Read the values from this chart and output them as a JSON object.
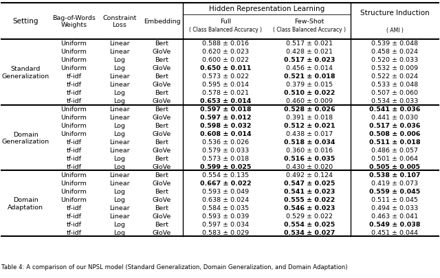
{
  "sections": [
    {
      "label": "Standard\nGeneralization",
      "rows": [
        [
          "Uniform",
          "Linear",
          "Bert",
          "0.588 ± 0.016",
          "0.517 ± 0.021",
          "0.539 ± 0.048"
        ],
        [
          "Uniform",
          "Linear",
          "GloVe",
          "0.620 ± 0.023",
          "0.428 ± 0.021",
          "0.458 ± 0.024"
        ],
        [
          "Uniform",
          "Log",
          "Bert",
          "0.600 ± 0.022",
          "0.517 ± 0.023",
          "0.520 ± 0.033"
        ],
        [
          "Uniform",
          "Log",
          "GloVe",
          "0.650 ± 0.011",
          "0.456 ± 0.014",
          "0.532 ± 0.009"
        ],
        [
          "tf-idf",
          "Linear",
          "Bert",
          "0.573 ± 0.022",
          "0.521 ± 0.018",
          "0.522 ± 0.024"
        ],
        [
          "tf-idf",
          "Linear",
          "GloVe",
          "0.595 ± 0.014",
          "0.379 ± 0.015",
          "0.533 ± 0.048"
        ],
        [
          "tf-idf",
          "Log",
          "Bert",
          "0.578 ± 0.021",
          "0.510 ± 0.022",
          "0.507 ± 0.060"
        ],
        [
          "tf-idf",
          "Log",
          "GloVe",
          "0.653 ± 0.014",
          "0.460 ± 0.009",
          "0.534 ± 0.033"
        ]
      ],
      "bold": [
        [
          false,
          false,
          false
        ],
        [
          false,
          false,
          false
        ],
        [
          false,
          true,
          false
        ],
        [
          true,
          false,
          false
        ],
        [
          false,
          true,
          false
        ],
        [
          false,
          false,
          false
        ],
        [
          false,
          true,
          false
        ],
        [
          true,
          false,
          false
        ]
      ]
    },
    {
      "label": "Domain\nGeneralization",
      "rows": [
        [
          "Uniform",
          "Linear",
          "Bert",
          "0.597 ± 0.018",
          "0.528 ± 0.026",
          "0.541 ± 0.036"
        ],
        [
          "Uniform",
          "Linear",
          "GloVe",
          "0.597 ± 0.012",
          "0.391 ± 0.018",
          "0.441 ± 0.030"
        ],
        [
          "Uniform",
          "Log",
          "Bert",
          "0.598 ± 0.032",
          "0.512 ± 0.021",
          "0.517 ± 0.036"
        ],
        [
          "Uniform",
          "Log",
          "GloVe",
          "0.608 ± 0.014",
          "0.438 ± 0.017",
          "0.508 ± 0.006"
        ],
        [
          "tf-idf",
          "Linear",
          "Bert",
          "0.536 ± 0.026",
          "0.518 ± 0.034",
          "0.511 ± 0.018"
        ],
        [
          "tf-idf",
          "Linear",
          "GloVe",
          "0.579 ± 0.033",
          "0.360 ± 0.016",
          "0.486 ± 0.057"
        ],
        [
          "tf-idf",
          "Log",
          "Bert",
          "0.573 ± 0.018",
          "0.516 ± 0.035",
          "0.501 ± 0.064"
        ],
        [
          "tf-idf",
          "Log",
          "GloVe",
          "0.599 ± 0.025",
          "0.430 ± 0.020",
          "0.505 ± 0.005"
        ]
      ],
      "bold": [
        [
          true,
          true,
          true
        ],
        [
          true,
          false,
          false
        ],
        [
          true,
          true,
          true
        ],
        [
          true,
          false,
          true
        ],
        [
          false,
          true,
          true
        ],
        [
          false,
          false,
          false
        ],
        [
          false,
          true,
          false
        ],
        [
          true,
          false,
          true
        ]
      ]
    },
    {
      "label": "Domain\nAdaptation",
      "rows": [
        [
          "Uniform",
          "Linear",
          "Bert",
          "0.554 ± 0.135",
          "0.492 ± 0.124",
          "0.538 ± 0.107"
        ],
        [
          "Uniform",
          "Linear",
          "GloVe",
          "0.667 ± 0.022",
          "0.547 ± 0.025",
          "0.419 ± 0.073"
        ],
        [
          "Uniform",
          "Log",
          "Bert",
          "0.593 ± 0.049",
          "0.541 ± 0.023",
          "0.559 ± 0.045"
        ],
        [
          "Uniform",
          "Log",
          "GloVe",
          "0.638 ± 0.024",
          "0.555 ± 0.022",
          "0.511 ± 0.045"
        ],
        [
          "tf-idf",
          "Linear",
          "Bert",
          "0.584 ± 0.035",
          "0.546 ± 0.023",
          "0.494 ± 0.033"
        ],
        [
          "tf-idf",
          "Linear",
          "GloVe",
          "0.593 ± 0.039",
          "0.529 ± 0.022",
          "0.463 ± 0.041"
        ],
        [
          "tf-idf",
          "Log",
          "Bert",
          "0.597 ± 0.034",
          "0.554 ± 0.025",
          "0.549 ± 0.038"
        ],
        [
          "tf-idf",
          "Log",
          "GloVe",
          "0.583 ± 0.029",
          "0.534 ± 0.027",
          "0.451 ± 0.044"
        ]
      ],
      "bold": [
        [
          false,
          false,
          true
        ],
        [
          true,
          true,
          false
        ],
        [
          false,
          true,
          true
        ],
        [
          false,
          true,
          false
        ],
        [
          false,
          true,
          false
        ],
        [
          false,
          false,
          false
        ],
        [
          false,
          true,
          true
        ],
        [
          false,
          true,
          false
        ]
      ]
    }
  ],
  "caption": "Table 4: A comparison of our NPSL model (Standard Generalization, Domain Generalization, and Domain Adaptation)",
  "bg_color": "#ffffff",
  "font_size": 6.8,
  "header_font_size": 7.5
}
